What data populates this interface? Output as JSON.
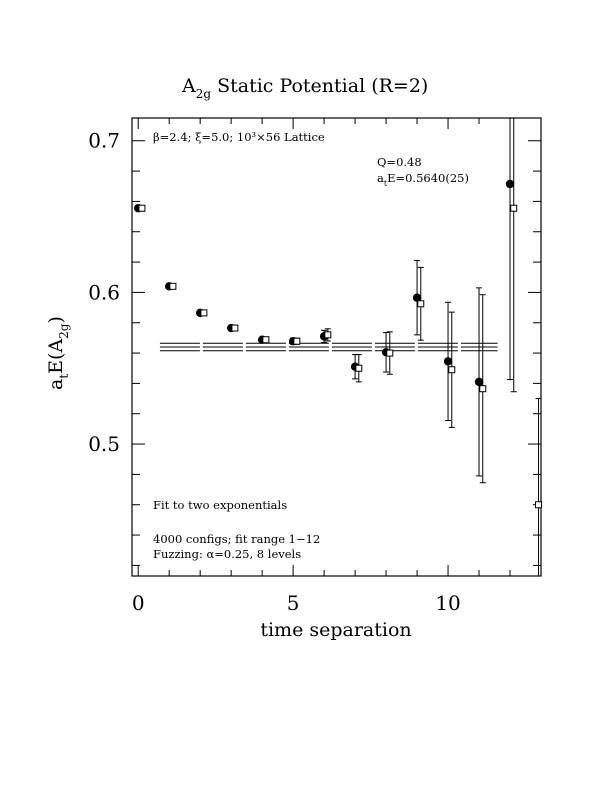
{
  "chart_data": {
    "type": "scatter",
    "title": "A2g Static Potential (R=2)",
    "title_parts": {
      "main": "A",
      "sub": "2g",
      "rest": " Static Potential (R=2)"
    },
    "xlabel": "time separation",
    "ylabel": "atE(A2g)",
    "ylabel_parts": {
      "a": "a",
      "a_sub": "t",
      "mid": "E(A",
      "sub": "2g",
      "end": ")"
    },
    "xlim": [
      -0.2,
      13.0
    ],
    "ylim": [
      0.413,
      0.715
    ],
    "x_ticks": [
      0,
      5,
      10
    ],
    "x_tick_labels": [
      "0",
      "5",
      "10"
    ],
    "y_ticks": [
      0.5,
      0.6,
      0.7
    ],
    "y_tick_labels": [
      "0.5",
      "0.6",
      "0.7"
    ],
    "grid": false,
    "annotations": {
      "lattice": "β=2.4; ξ=5.0; 10³×56 Lattice",
      "q": "Q=0.48",
      "ate": "atE=0.5640(25)",
      "ate_parts": {
        "a": "a",
        "sub": "t",
        "rest": "E=0.5640(25)"
      },
      "fit_type": "Fit to two exponentials",
      "configs": "4000 configs; fit range 1−12",
      "fuzzing": "Fuzzing: α=0.25, 8 levels"
    },
    "fit": {
      "value": 0.564,
      "error": 0.0025,
      "x_range": [
        0.7,
        11.6
      ]
    },
    "series": [
      {
        "marker": "filled-circle",
        "x": [
          0,
          1,
          2,
          3,
          4,
          5,
          6,
          7,
          8,
          9,
          10,
          11,
          12
        ],
        "y": [
          0.6555,
          0.604,
          0.5865,
          0.5765,
          0.5688,
          0.5678,
          0.571,
          0.551,
          0.5605,
          0.5965,
          0.5545,
          0.541,
          0.6715
        ],
        "err": [
          0.0015,
          0.0015,
          0.0015,
          0.0015,
          0.0015,
          0.002,
          0.004,
          0.008,
          0.013,
          0.0245,
          0.039,
          0.062,
          0.129
        ]
      },
      {
        "marker": "open-square",
        "x": [
          0.12,
          1.12,
          2.12,
          3.12,
          4.12,
          5.12,
          6.12,
          7.12,
          8.12,
          9.12,
          10.12,
          11.12,
          12.12,
          12.92
        ],
        "y": [
          0.6555,
          0.604,
          0.5865,
          0.5765,
          0.5688,
          0.5678,
          0.572,
          0.55,
          0.56,
          0.5925,
          0.549,
          0.5365,
          0.6555,
          0.46
        ],
        "err": [
          0.0015,
          0.0015,
          0.0015,
          0.0015,
          0.0015,
          0.002,
          0.004,
          0.009,
          0.014,
          0.024,
          0.038,
          0.062,
          0.121,
          0.07
        ]
      }
    ]
  }
}
